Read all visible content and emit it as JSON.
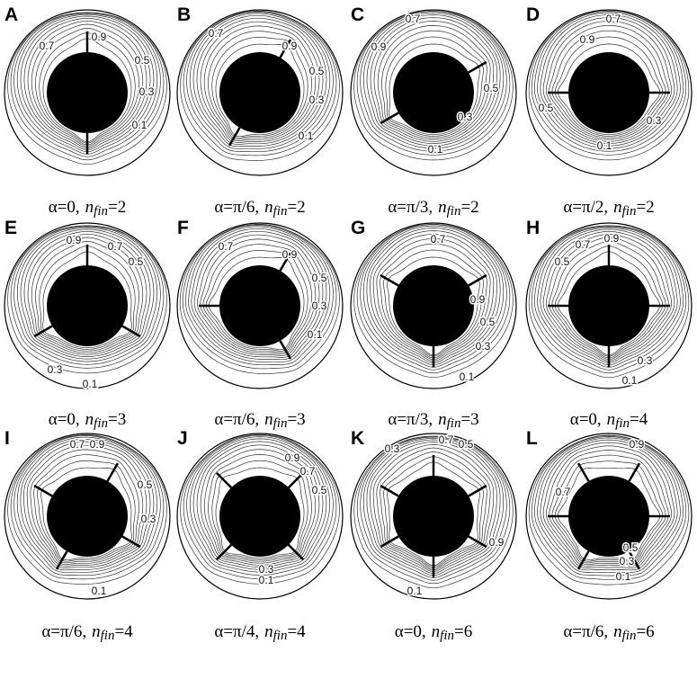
{
  "panels": [
    {
      "letter": "A",
      "caption": {
        "alpha": "α=0,",
        "n": "n",
        "sub": "fin",
        "eq": "=2"
      },
      "labels": [
        "0.9",
        "0.7",
        "0.5",
        "0.3",
        "0.1"
      ]
    },
    {
      "letter": "B",
      "caption": {
        "alpha": "α=π/6,",
        "n": "n",
        "sub": "fin",
        "eq": "=2"
      },
      "labels": [
        "0.7",
        "0.9",
        "0.5",
        "0.3",
        "0.1"
      ]
    },
    {
      "letter": "C",
      "caption": {
        "alpha": "α=π/3,",
        "n": "n",
        "sub": "fin",
        "eq": "=2"
      },
      "labels": [
        "0.7",
        "0.9",
        "0.5",
        "0.3",
        "0.1"
      ]
    },
    {
      "letter": "D",
      "caption": {
        "alpha": "α=π/2,",
        "n": "n",
        "sub": "fin",
        "eq": "=2"
      },
      "labels": [
        "0.7",
        "0.9",
        "0.5",
        "0.3",
        "0.1"
      ]
    },
    {
      "letter": "E",
      "caption": {
        "alpha": "α=0,",
        "n": "n",
        "sub": "fin",
        "eq": "=3"
      },
      "labels": [
        "0.9",
        "0.7",
        "0.5",
        "0.3",
        "0.1"
      ]
    },
    {
      "letter": "F",
      "caption": {
        "alpha": "α=π/6,",
        "n": "n",
        "sub": "fin",
        "eq": "=3"
      },
      "labels": [
        "0.7",
        "0.9",
        "0.5",
        "0.3",
        "0.1"
      ]
    },
    {
      "letter": "G",
      "caption": {
        "alpha": "α=π/3,",
        "n": "n",
        "sub": "fin",
        "eq": "=3"
      },
      "labels": [
        "0.7",
        "0.9",
        "0.5",
        "0.3",
        "0.1"
      ]
    },
    {
      "letter": "H",
      "caption": {
        "alpha": "α=0,",
        "n": "n",
        "sub": "fin",
        "eq": "=4"
      },
      "labels": [
        "0.9",
        "0.7",
        "0.5",
        "0.3",
        "0.1"
      ]
    },
    {
      "letter": "I",
      "caption": {
        "alpha": "α=π/6,",
        "n": "n",
        "sub": "fin",
        "eq": "=4"
      },
      "labels": [
        "0.7",
        "0.9",
        "0.5",
        "0.3",
        "0.1"
      ]
    },
    {
      "letter": "J",
      "caption": {
        "alpha": "α=π/4,",
        "n": "n",
        "sub": "fin",
        "eq": "=4"
      },
      "labels": [
        "0.9",
        "0.7",
        "0.5",
        "0.3",
        "0.1"
      ]
    },
    {
      "letter": "K",
      "caption": {
        "alpha": "α=0,",
        "n": "n",
        "sub": "fin",
        "eq": "=6"
      },
      "labels": [
        "0.7",
        "0.5",
        "0.3",
        "0.9",
        "0.1"
      ]
    },
    {
      "letter": "L",
      "caption": {
        "alpha": "α=π/6,",
        "n": "n",
        "sub": "fin",
        "eq": "=6"
      },
      "labels": [
        "0.9",
        "0.7",
        "0.5",
        "0.3",
        "0.1"
      ]
    }
  ]
}
